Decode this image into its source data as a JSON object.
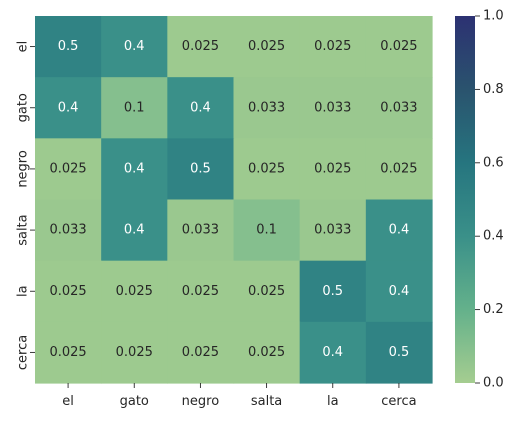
{
  "chart_data": {
    "type": "heatmap",
    "title": "",
    "xlabel": "",
    "ylabel": "",
    "x_categories": [
      "el",
      "gato",
      "negro",
      "salta",
      "la",
      "cerca"
    ],
    "y_categories": [
      "el",
      "gato",
      "negro",
      "salta",
      "la",
      "cerca"
    ],
    "values": [
      [
        0.5,
        0.4,
        0.025,
        0.025,
        0.025,
        0.025
      ],
      [
        0.4,
        0.1,
        0.4,
        0.033,
        0.033,
        0.033
      ],
      [
        0.025,
        0.4,
        0.5,
        0.025,
        0.025,
        0.025
      ],
      [
        0.033,
        0.4,
        0.033,
        0.1,
        0.033,
        0.4
      ],
      [
        0.025,
        0.025,
        0.025,
        0.025,
        0.5,
        0.4
      ],
      [
        0.025,
        0.025,
        0.025,
        0.025,
        0.4,
        0.5
      ]
    ],
    "cell_labels": [
      [
        "0.5",
        "0.4",
        "0.025",
        "0.025",
        "0.025",
        "0.025"
      ],
      [
        "0.4",
        "0.1",
        "0.4",
        "0.033",
        "0.033",
        "0.033"
      ],
      [
        "0.025",
        "0.4",
        "0.5",
        "0.025",
        "0.025",
        "0.025"
      ],
      [
        "0.033",
        "0.4",
        "0.033",
        "0.1",
        "0.033",
        "0.4"
      ],
      [
        "0.025",
        "0.025",
        "0.025",
        "0.025",
        "0.5",
        "0.4"
      ],
      [
        "0.025",
        "0.025",
        "0.025",
        "0.025",
        "0.4",
        "0.5"
      ]
    ],
    "colorbar": {
      "range": [
        0.0,
        1.0
      ],
      "ticks": [
        0.0,
        0.2,
        0.4,
        0.6,
        0.8,
        1.0
      ],
      "tick_labels": [
        "0.0",
        "0.2",
        "0.4",
        "0.6",
        "0.8",
        "1.0"
      ]
    },
    "colormap": "crest",
    "colormap_stops": [
      "#a5cd90",
      "#64b18b",
      "#3a9089",
      "#26757f",
      "#2a536e",
      "#2c3172"
    ],
    "annotation_text_colors": {
      "dark_bg": "#ffffff",
      "light_bg": "#262626"
    },
    "grid": false,
    "legend": "colorbar-right"
  }
}
